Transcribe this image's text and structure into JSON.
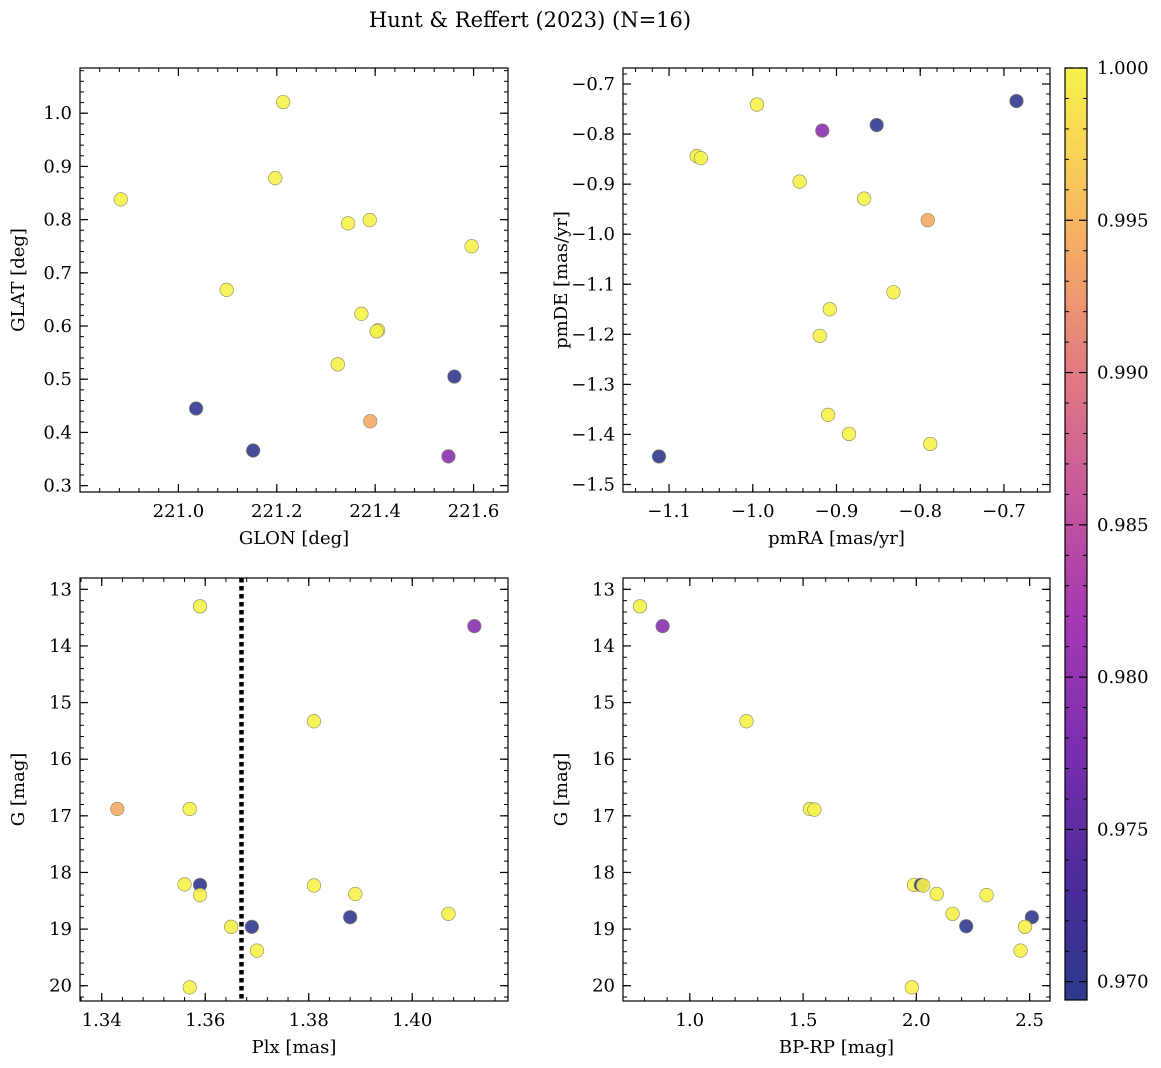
{
  "title": "Hunt & Reffert (2023) (N=16)",
  "colorbar": {
    "vmin": 0.9694,
    "vmax": 1.0,
    "ticks": [
      "0.970",
      "0.975",
      "0.980",
      "0.985",
      "0.990",
      "0.995",
      "1.000"
    ],
    "tick_values": [
      0.97,
      0.975,
      0.98,
      0.985,
      0.99,
      0.995,
      1.0
    ],
    "colormap": "plasma"
  },
  "chart_data": [
    {
      "type": "scatter",
      "xlabel": "GLON [deg]",
      "ylabel": "GLAT [deg]",
      "xlim": [
        220.8,
        221.67
      ],
      "ylim": [
        0.288,
        1.085
      ],
      "y_inverted": false,
      "xticks": [
        221.0,
        221.2,
        221.4,
        221.6
      ],
      "xtick_labels": [
        "221.0",
        "221.2",
        "221.4",
        "221.6"
      ],
      "yticks": [
        0.3,
        0.4,
        0.5,
        0.6,
        0.7,
        0.8,
        0.9,
        1.0
      ],
      "ytick_labels": [
        "0.3",
        "0.4",
        "0.5",
        "0.6",
        "0.7",
        "0.8",
        "0.9",
        "1.0"
      ],
      "points": [
        {
          "x": 221.213,
          "y": 1.021,
          "c": 1.0
        },
        {
          "x": 220.883,
          "y": 0.838,
          "c": 1.0
        },
        {
          "x": 221.197,
          "y": 0.878,
          "c": 1.0
        },
        {
          "x": 221.345,
          "y": 0.793,
          "c": 1.0
        },
        {
          "x": 221.389,
          "y": 0.799,
          "c": 1.0
        },
        {
          "x": 221.596,
          "y": 0.75,
          "c": 1.0
        },
        {
          "x": 221.098,
          "y": 0.668,
          "c": 1.0
        },
        {
          "x": 221.372,
          "y": 0.623,
          "c": 1.0
        },
        {
          "x": 221.406,
          "y": 0.592,
          "c": 1.0
        },
        {
          "x": 221.403,
          "y": 0.59,
          "c": 1.0
        },
        {
          "x": 221.324,
          "y": 0.528,
          "c": 1.0
        },
        {
          "x": 221.561,
          "y": 0.505,
          "c": 0.97
        },
        {
          "x": 221.036,
          "y": 0.445,
          "c": 0.97
        },
        {
          "x": 221.39,
          "y": 0.421,
          "c": 0.994
        },
        {
          "x": 221.152,
          "y": 0.366,
          "c": 0.97
        },
        {
          "x": 221.549,
          "y": 0.355,
          "c": 0.979
        }
      ]
    },
    {
      "type": "scatter",
      "xlabel": "pmRA [mas/yr]",
      "ylabel": "pmDE [mas/yr]",
      "xlim": [
        -1.155,
        -0.645
      ],
      "ylim": [
        -1.515,
        -0.668
      ],
      "y_inverted": false,
      "xticks": [
        -1.1,
        -1.0,
        -0.9,
        -0.8,
        -0.7
      ],
      "xtick_labels": [
        "−1.1",
        "−1.0",
        "−0.9",
        "−0.8",
        "−0.7"
      ],
      "yticks": [
        -1.5,
        -1.4,
        -1.3,
        -1.2,
        -1.1,
        -1.0,
        -0.9,
        -0.8,
        -0.7
      ],
      "ytick_labels": [
        "−1.5",
        "−1.4",
        "−1.3",
        "−1.2",
        "−1.1",
        "−1.0",
        "−0.9",
        "−0.8",
        "−0.7"
      ],
      "points": [
        {
          "x": -0.685,
          "y": -0.734,
          "c": 0.97
        },
        {
          "x": -0.995,
          "y": -0.741,
          "c": 1.0
        },
        {
          "x": -0.917,
          "y": -0.793,
          "c": 0.979
        },
        {
          "x": -0.852,
          "y": -0.782,
          "c": 0.97
        },
        {
          "x": -1.067,
          "y": -0.844,
          "c": 1.0
        },
        {
          "x": -1.062,
          "y": -0.848,
          "c": 1.0
        },
        {
          "x": -0.944,
          "y": -0.895,
          "c": 1.0
        },
        {
          "x": -0.867,
          "y": -0.929,
          "c": 1.0
        },
        {
          "x": -0.791,
          "y": -0.972,
          "c": 0.994
        },
        {
          "x": -0.832,
          "y": -1.116,
          "c": 1.0
        },
        {
          "x": -0.908,
          "y": -1.15,
          "c": 1.0
        },
        {
          "x": -0.92,
          "y": -1.203,
          "c": 1.0
        },
        {
          "x": -0.91,
          "y": -1.361,
          "c": 1.0
        },
        {
          "x": -0.885,
          "y": -1.399,
          "c": 1.0
        },
        {
          "x": -0.788,
          "y": -1.419,
          "c": 1.0
        },
        {
          "x": -1.112,
          "y": -1.444,
          "c": 0.97
        }
      ]
    },
    {
      "type": "scatter",
      "xlabel": "Plx [mas]",
      "ylabel": "G [mag]",
      "xlim": [
        1.3358,
        1.4185
      ],
      "ylim": [
        12.8,
        20.27
      ],
      "y_inverted": true,
      "xticks": [
        1.34,
        1.36,
        1.38,
        1.4
      ],
      "xtick_labels": [
        "1.34",
        "1.36",
        "1.38",
        "1.40"
      ],
      "yticks": [
        13,
        14,
        15,
        16,
        17,
        18,
        19,
        20
      ],
      "ytick_labels": [
        "13",
        "14",
        "15",
        "16",
        "17",
        "18",
        "19",
        "20"
      ],
      "vline": {
        "x": 1.367,
        "style": "dotted"
      },
      "points": [
        {
          "x": 1.359,
          "y": 13.3,
          "c": 1.0
        },
        {
          "x": 1.412,
          "y": 13.65,
          "c": 0.979
        },
        {
          "x": 1.381,
          "y": 15.33,
          "c": 1.0
        },
        {
          "x": 1.343,
          "y": 16.88,
          "c": 0.994
        },
        {
          "x": 1.357,
          "y": 16.88,
          "c": 1.0
        },
        {
          "x": 1.356,
          "y": 18.21,
          "c": 1.0
        },
        {
          "x": 1.359,
          "y": 18.22,
          "c": 0.97
        },
        {
          "x": 1.381,
          "y": 18.23,
          "c": 1.0
        },
        {
          "x": 1.359,
          "y": 18.4,
          "c": 1.0
        },
        {
          "x": 1.389,
          "y": 18.38,
          "c": 1.0
        },
        {
          "x": 1.407,
          "y": 18.73,
          "c": 1.0
        },
        {
          "x": 1.388,
          "y": 18.79,
          "c": 0.97
        },
        {
          "x": 1.365,
          "y": 18.96,
          "c": 1.0
        },
        {
          "x": 1.369,
          "y": 18.96,
          "c": 0.97
        },
        {
          "x": 1.37,
          "y": 19.38,
          "c": 1.0
        },
        {
          "x": 1.357,
          "y": 20.03,
          "c": 1.0
        }
      ]
    },
    {
      "type": "scatter",
      "xlabel": "BP-RP [mag]",
      "ylabel": "G [mag]",
      "xlim": [
        0.705,
        2.59
      ],
      "ylim": [
        12.8,
        20.27
      ],
      "y_inverted": true,
      "xticks": [
        1.0,
        1.5,
        2.0,
        2.5
      ],
      "xtick_labels": [
        "1.0",
        "1.5",
        "2.0",
        "2.5"
      ],
      "yticks": [
        13,
        14,
        15,
        16,
        17,
        18,
        19,
        20
      ],
      "ytick_labels": [
        "13",
        "14",
        "15",
        "16",
        "17",
        "18",
        "19",
        "20"
      ],
      "points": [
        {
          "x": 0.78,
          "y": 13.3,
          "c": 1.0
        },
        {
          "x": 0.88,
          "y": 13.65,
          "c": 0.979
        },
        {
          "x": 1.25,
          "y": 15.33,
          "c": 1.0
        },
        {
          "x": 1.53,
          "y": 16.88,
          "c": 1.0
        },
        {
          "x": 1.55,
          "y": 16.89,
          "c": 1.0
        },
        {
          "x": 1.99,
          "y": 18.22,
          "c": 1.0
        },
        {
          "x": 2.02,
          "y": 18.22,
          "c": 0.97
        },
        {
          "x": 2.03,
          "y": 18.23,
          "c": 1.0
        },
        {
          "x": 2.09,
          "y": 18.38,
          "c": 1.0
        },
        {
          "x": 2.31,
          "y": 18.4,
          "c": 1.0
        },
        {
          "x": 2.16,
          "y": 18.73,
          "c": 1.0
        },
        {
          "x": 2.51,
          "y": 18.79,
          "c": 0.97
        },
        {
          "x": 2.22,
          "y": 18.95,
          "c": 0.97
        },
        {
          "x": 2.48,
          "y": 18.96,
          "c": 1.0
        },
        {
          "x": 2.46,
          "y": 19.38,
          "c": 1.0
        },
        {
          "x": 1.98,
          "y": 20.03,
          "c": 1.0
        }
      ]
    }
  ]
}
